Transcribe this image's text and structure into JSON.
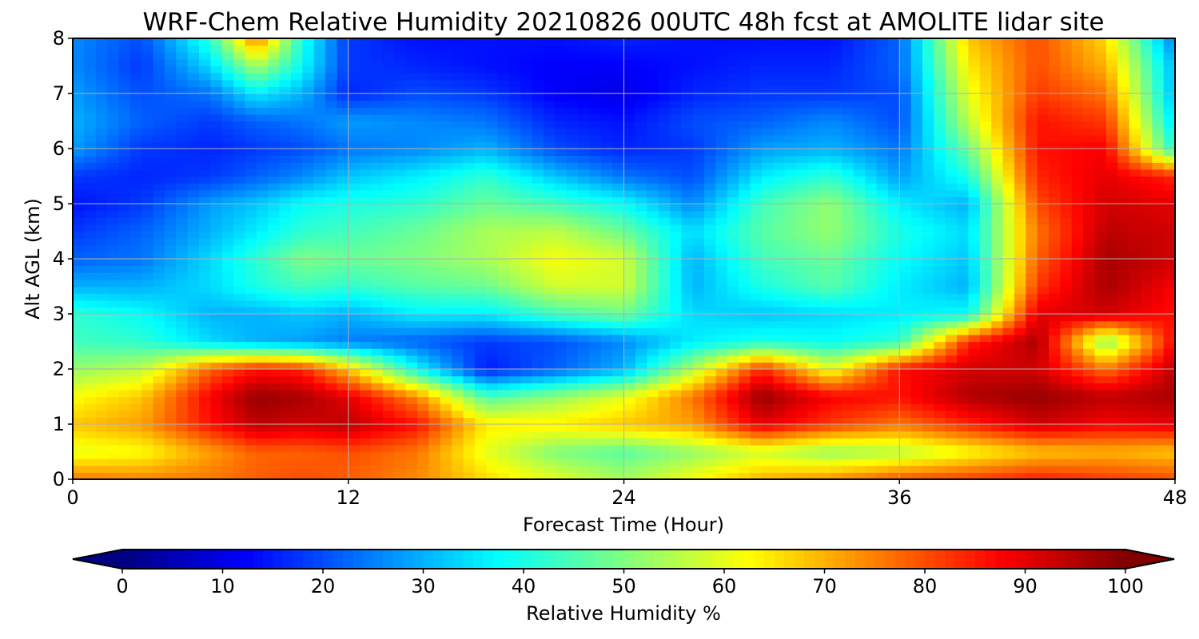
{
  "chart_data": {
    "type": "heatmap",
    "title": "WRF-Chem Relative Humidity 20210826 00UTC 48h fcst at AMOLITE lidar site",
    "xlabel": "Forecast Time (Hour)",
    "ylabel": "Alt AGL (km)",
    "xlim": [
      0,
      48
    ],
    "ylim": [
      0,
      8
    ],
    "xticks": [
      "0",
      "12",
      "24",
      "36",
      "48"
    ],
    "yticks": [
      "0",
      "1",
      "2",
      "3",
      "4",
      "5",
      "6",
      "7",
      "8"
    ],
    "grid": true,
    "colormap": "jet",
    "colorbar": {
      "label": "Relative Humidity %",
      "range": [
        0,
        100
      ],
      "ticks": [
        "0",
        "10",
        "20",
        "30",
        "40",
        "50",
        "60",
        "70",
        "80",
        "90",
        "100"
      ],
      "extend": "both",
      "orientation": "horizontal"
    },
    "x_hours": [
      0,
      3,
      6,
      8,
      10,
      12,
      15,
      18,
      21,
      24,
      27,
      30,
      33,
      36,
      39,
      42,
      45,
      48
    ],
    "z_km": [
      0,
      0.5,
      1,
      1.5,
      2,
      2.5,
      3,
      3.5,
      4,
      4.5,
      5,
      5.5,
      6,
      6.5,
      7,
      7.5,
      8
    ],
    "rh_percent": [
      [
        76,
        75,
        76,
        78,
        80,
        78,
        74,
        66,
        60,
        54,
        62,
        70,
        74,
        80,
        82,
        85,
        82,
        80
      ],
      [
        60,
        62,
        72,
        78,
        78,
        80,
        76,
        60,
        50,
        46,
        52,
        58,
        52,
        55,
        62,
        68,
        70,
        68
      ],
      [
        68,
        72,
        86,
        94,
        92,
        94,
        86,
        64,
        64,
        68,
        72,
        90,
        82,
        76,
        84,
        92,
        88,
        90
      ],
      [
        62,
        68,
        88,
        98,
        96,
        90,
        74,
        45,
        52,
        60,
        76,
        98,
        88,
        86,
        95,
        98,
        94,
        96
      ],
      [
        52,
        56,
        78,
        86,
        84,
        68,
        38,
        15,
        22,
        30,
        55,
        84,
        60,
        86,
        92,
        92,
        76,
        94
      ],
      [
        44,
        42,
        34,
        30,
        28,
        25,
        22,
        18,
        20,
        26,
        36,
        40,
        38,
        42,
        84,
        96,
        50,
        88
      ],
      [
        42,
        38,
        30,
        30,
        32,
        30,
        36,
        36,
        44,
        48,
        34,
        32,
        34,
        36,
        38,
        90,
        92,
        86
      ],
      [
        30,
        30,
        34,
        40,
        44,
        42,
        46,
        48,
        58,
        58,
        30,
        40,
        46,
        36,
        30,
        82,
        96,
        88
      ],
      [
        22,
        24,
        34,
        42,
        50,
        48,
        50,
        54,
        62,
        58,
        30,
        44,
        48,
        38,
        32,
        78,
        96,
        92
      ],
      [
        18,
        22,
        30,
        36,
        42,
        44,
        48,
        54,
        56,
        48,
        34,
        46,
        52,
        40,
        34,
        76,
        94,
        92
      ],
      [
        14,
        18,
        28,
        32,
        38,
        40,
        42,
        48,
        44,
        38,
        26,
        44,
        52,
        36,
        30,
        80,
        92,
        90
      ],
      [
        18,
        16,
        18,
        22,
        26,
        32,
        36,
        42,
        32,
        24,
        20,
        36,
        42,
        28,
        40,
        84,
        90,
        84
      ],
      [
        28,
        18,
        16,
        18,
        20,
        24,
        26,
        30,
        20,
        16,
        18,
        28,
        30,
        24,
        48,
        86,
        88,
        40
      ],
      [
        30,
        22,
        18,
        22,
        24,
        28,
        26,
        24,
        16,
        14,
        20,
        22,
        26,
        20,
        56,
        86,
        82,
        34
      ],
      [
        28,
        20,
        24,
        36,
        30,
        16,
        20,
        18,
        12,
        10,
        16,
        18,
        18,
        20,
        60,
        82,
        76,
        30
      ],
      [
        26,
        18,
        34,
        54,
        38,
        18,
        16,
        14,
        12,
        12,
        14,
        16,
        16,
        22,
        64,
        80,
        70,
        30
      ],
      [
        26,
        20,
        42,
        76,
        40,
        18,
        14,
        14,
        14,
        16,
        14,
        14,
        14,
        22,
        68,
        80,
        66,
        24
      ]
    ]
  }
}
